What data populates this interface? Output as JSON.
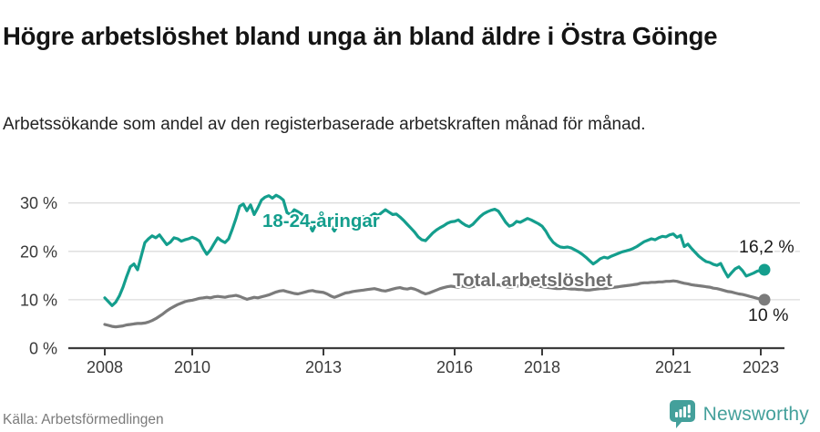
{
  "header": {
    "title": "Högre arbetslöshet bland unga än bland äldre i Östra Göinge",
    "subtitle": "Arbetssökande som andel av den registerbaserade arbetskraften månad för månad."
  },
  "footer": {
    "source": "Källa: Arbetsförmedlingen",
    "brand": "Newsworthy"
  },
  "colors": {
    "accent_teal": "#149e8d",
    "line_gray": "#7b7b7b",
    "gray_label": "#6e6e6e",
    "axis": "#3c3c3c",
    "grid": "#dcdcdc",
    "logo_teal": "#44a09b",
    "text_dark": "#141414"
  },
  "chart_data": {
    "type": "line",
    "title": "Högre arbetslöshet bland unga än bland äldre i Östra Göinge",
    "subtitle": "Arbetssökande som andel av den registerbaserade arbetskraften månad för månad.",
    "x_axis": {
      "ticks": [
        2008,
        2010,
        2013,
        2016,
        2018,
        2021,
        2023
      ],
      "range": [
        2007.2,
        2023.5
      ],
      "unit": "year, monthly data"
    },
    "y_axis": {
      "ticks": [
        0,
        10,
        20,
        30
      ],
      "tick_labels": [
        "0 %",
        "10 %",
        "20 %",
        "30 %"
      ],
      "range": [
        0,
        33
      ],
      "grid": true
    },
    "legend_position": "inline-labels",
    "annotations": {
      "series_labels": [
        "18-24-åringar",
        "Total arbetslöshet"
      ],
      "end_labels": [
        "16,2 %",
        "10 %"
      ]
    },
    "start": "2008-01",
    "end": "2023-02",
    "series": [
      {
        "name": "18-24-åringar",
        "color": "#149e8d",
        "end_value": 16.2,
        "values": [
          10.4,
          9.6,
          8.8,
          9.5,
          10.8,
          12.6,
          14.8,
          16.8,
          17.4,
          16.2,
          19.0,
          21.8,
          22.6,
          23.2,
          22.8,
          23.4,
          22.4,
          21.4,
          21.9,
          22.8,
          22.6,
          22.1,
          22.4,
          22.6,
          22.9,
          22.6,
          22.1,
          20.6,
          19.4,
          20.3,
          21.6,
          22.8,
          22.2,
          21.8,
          22.6,
          24.6,
          26.8,
          29.3,
          29.8,
          28.4,
          29.6,
          27.6,
          29.0,
          30.6,
          31.2,
          31.5,
          31.0,
          31.6,
          31.2,
          30.6,
          28.0,
          27.6,
          28.6,
          28.2,
          27.7,
          27.2,
          25.6,
          24.2,
          25.7,
          26.1,
          26.3,
          26.0,
          25.4,
          24.2,
          25.5,
          26.4,
          27.0,
          26.6,
          26.9,
          26.5,
          26.9,
          27.2,
          26.8,
          27.3,
          27.8,
          27.4,
          28.0,
          28.6,
          28.1,
          27.6,
          27.7,
          27.1,
          26.4,
          25.6,
          24.8,
          24.0,
          23.0,
          22.4,
          22.2,
          23.0,
          23.8,
          24.4,
          24.9,
          25.3,
          25.8,
          26.1,
          26.2,
          26.5,
          25.9,
          25.4,
          25.1,
          25.6,
          26.4,
          27.2,
          27.8,
          28.2,
          28.5,
          28.7,
          28.3,
          27.2,
          26.0,
          25.2,
          25.5,
          26.2,
          26.0,
          26.4,
          26.8,
          26.5,
          26.1,
          25.7,
          25.2,
          24.2,
          22.9,
          21.9,
          21.3,
          20.9,
          20.8,
          20.9,
          20.7,
          20.3,
          19.9,
          19.4,
          18.8,
          18.1,
          17.4,
          17.9,
          18.5,
          18.8,
          18.6,
          19.0,
          19.3,
          19.6,
          19.9,
          20.1,
          20.3,
          20.6,
          21.0,
          21.5,
          22.0,
          22.3,
          22.6,
          22.4,
          22.8,
          23.1,
          23.0,
          23.4,
          23.6,
          22.9,
          23.3,
          21.0,
          21.5,
          20.6,
          19.8,
          19.0,
          18.4,
          17.9,
          17.7,
          17.3,
          17.1,
          17.5,
          16.0,
          14.7,
          15.6,
          16.4,
          16.8,
          16.0,
          14.9,
          15.2,
          15.5,
          15.9,
          16.1,
          16.2
        ]
      },
      {
        "name": "Total arbetslöshet",
        "color": "#7b7b7b",
        "end_value": 10.0,
        "values": [
          4.9,
          4.7,
          4.5,
          4.4,
          4.5,
          4.6,
          4.8,
          4.9,
          5.0,
          5.1,
          5.1,
          5.2,
          5.4,
          5.7,
          6.1,
          6.6,
          7.1,
          7.7,
          8.2,
          8.6,
          9.0,
          9.3,
          9.6,
          9.8,
          9.9,
          10.1,
          10.3,
          10.4,
          10.5,
          10.4,
          10.6,
          10.7,
          10.6,
          10.5,
          10.7,
          10.8,
          10.9,
          10.7,
          10.4,
          10.1,
          10.3,
          10.5,
          10.4,
          10.6,
          10.8,
          11.0,
          11.3,
          11.6,
          11.8,
          11.9,
          11.7,
          11.5,
          11.3,
          11.2,
          11.4,
          11.6,
          11.8,
          11.9,
          11.7,
          11.6,
          11.5,
          11.2,
          10.8,
          10.5,
          10.8,
          11.1,
          11.4,
          11.5,
          11.7,
          11.8,
          11.9,
          12.0,
          12.1,
          12.2,
          12.3,
          12.1,
          11.9,
          11.8,
          12.0,
          12.2,
          12.4,
          12.5,
          12.3,
          12.2,
          12.4,
          12.2,
          11.9,
          11.5,
          11.2,
          11.4,
          11.7,
          12.0,
          12.3,
          12.5,
          12.7,
          12.8,
          12.7,
          12.6,
          12.8,
          12.7,
          12.6,
          12.7,
          12.9,
          13.0,
          12.9,
          12.8,
          12.9,
          13.0,
          13.1,
          12.9,
          12.7,
          12.6,
          12.7,
          12.8,
          12.9,
          12.8,
          12.9,
          12.8,
          12.9,
          12.8,
          12.7,
          12.6,
          12.5,
          12.4,
          12.3,
          12.3,
          12.4,
          12.3,
          12.2,
          12.2,
          12.1,
          12.1,
          12.0,
          12.0,
          12.1,
          12.2,
          12.3,
          12.3,
          12.4,
          12.5,
          12.6,
          12.7,
          12.8,
          12.9,
          13.0,
          13.1,
          13.2,
          13.4,
          13.5,
          13.5,
          13.6,
          13.6,
          13.7,
          13.7,
          13.8,
          13.8,
          13.9,
          13.8,
          13.6,
          13.4,
          13.3,
          13.1,
          13.0,
          12.9,
          12.8,
          12.7,
          12.6,
          12.4,
          12.3,
          12.1,
          11.9,
          11.7,
          11.6,
          11.4,
          11.2,
          11.1,
          10.9,
          10.7,
          10.5,
          10.3,
          10.1,
          10.0
        ]
      }
    ]
  }
}
